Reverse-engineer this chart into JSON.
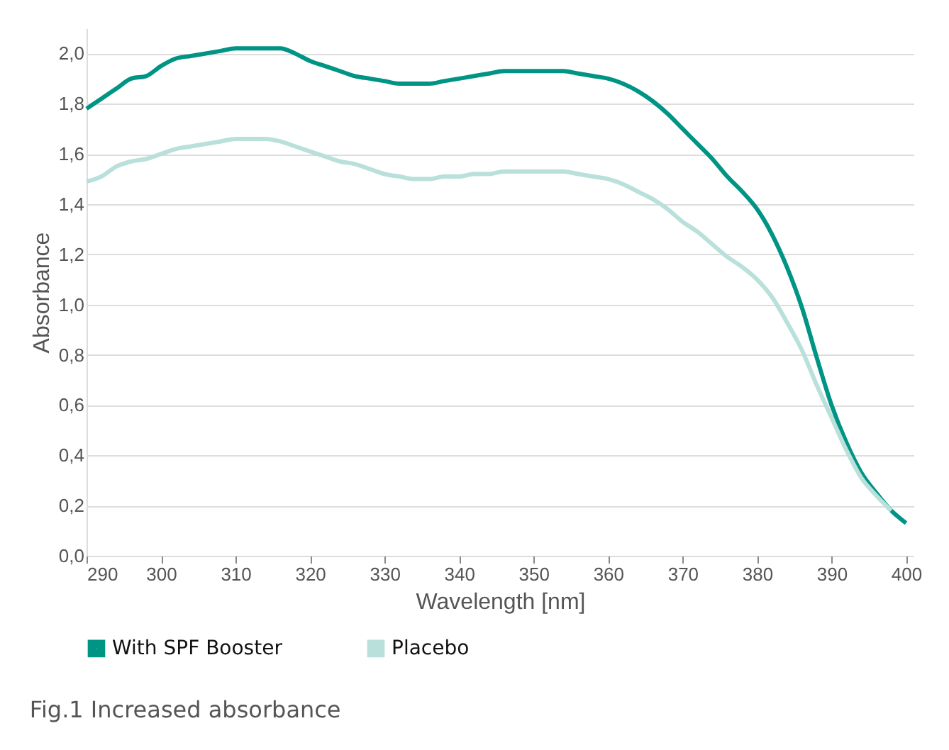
{
  "chart_data": {
    "type": "line",
    "xlabel": "Wavelength [nm]",
    "ylabel": "Absorbance",
    "annotations": [
      "Fig.1 Increased absorbance"
    ],
    "x": [
      290,
      292,
      294,
      296,
      298,
      300,
      302,
      304,
      306,
      308,
      310,
      312,
      314,
      316,
      318,
      320,
      322,
      324,
      326,
      328,
      330,
      332,
      334,
      336,
      338,
      340,
      342,
      344,
      346,
      348,
      350,
      352,
      354,
      356,
      358,
      360,
      362,
      364,
      366,
      368,
      370,
      372,
      374,
      376,
      378,
      380,
      382,
      384,
      386,
      388,
      390,
      392,
      394,
      396,
      398,
      400
    ],
    "series": [
      {
        "name": "With SPF Booster",
        "color": "#009485",
        "values": [
          1.78,
          1.82,
          1.86,
          1.9,
          1.91,
          1.95,
          1.98,
          1.99,
          2.0,
          2.01,
          2.02,
          2.02,
          2.02,
          2.02,
          2.0,
          1.97,
          1.95,
          1.93,
          1.91,
          1.9,
          1.89,
          1.88,
          1.88,
          1.88,
          1.89,
          1.9,
          1.91,
          1.92,
          1.93,
          1.93,
          1.93,
          1.93,
          1.93,
          1.92,
          1.91,
          1.9,
          1.88,
          1.85,
          1.81,
          1.76,
          1.7,
          1.64,
          1.58,
          1.51,
          1.45,
          1.38,
          1.28,
          1.15,
          0.99,
          0.79,
          0.6,
          0.45,
          0.33,
          0.25,
          0.18,
          0.13
        ]
      },
      {
        "name": "Placebo",
        "color": "#b9e0da",
        "values": [
          1.49,
          1.51,
          1.55,
          1.57,
          1.58,
          1.6,
          1.62,
          1.63,
          1.64,
          1.65,
          1.66,
          1.66,
          1.66,
          1.65,
          1.63,
          1.61,
          1.59,
          1.57,
          1.56,
          1.54,
          1.52,
          1.51,
          1.5,
          1.5,
          1.51,
          1.51,
          1.52,
          1.52,
          1.53,
          1.53,
          1.53,
          1.53,
          1.53,
          1.52,
          1.51,
          1.5,
          1.48,
          1.45,
          1.42,
          1.38,
          1.33,
          1.29,
          1.24,
          1.19,
          1.15,
          1.1,
          1.03,
          0.93,
          0.82,
          0.68,
          0.55,
          0.42,
          0.31,
          0.24,
          0.18,
          null
        ]
      }
    ],
    "xlim": [
      290,
      401
    ],
    "xticks": [
      290,
      300,
      310,
      320,
      330,
      340,
      350,
      360,
      370,
      380,
      390,
      400
    ],
    "ylim": [
      0,
      2.1
    ],
    "yticks": [
      {
        "value": 0,
        "label": "0,0"
      },
      {
        "value": 0.2,
        "label": "0,2"
      },
      {
        "value": 0.4,
        "label": "0,4"
      },
      {
        "value": 0.6,
        "label": "0,6"
      },
      {
        "value": 0.8,
        "label": "0,8"
      },
      {
        "value": 1.0,
        "label": "1,0"
      },
      {
        "value": 1.2,
        "label": "1,2"
      },
      {
        "value": 1.4,
        "label": "1,4"
      },
      {
        "value": 1.6,
        "label": "1,6"
      },
      {
        "value": 1.8,
        "label": "1,8"
      },
      {
        "value": 2.0,
        "label": "2,0"
      }
    ],
    "grid": "y",
    "legend": "bottom",
    "marker": "none",
    "line_style": "solid"
  }
}
